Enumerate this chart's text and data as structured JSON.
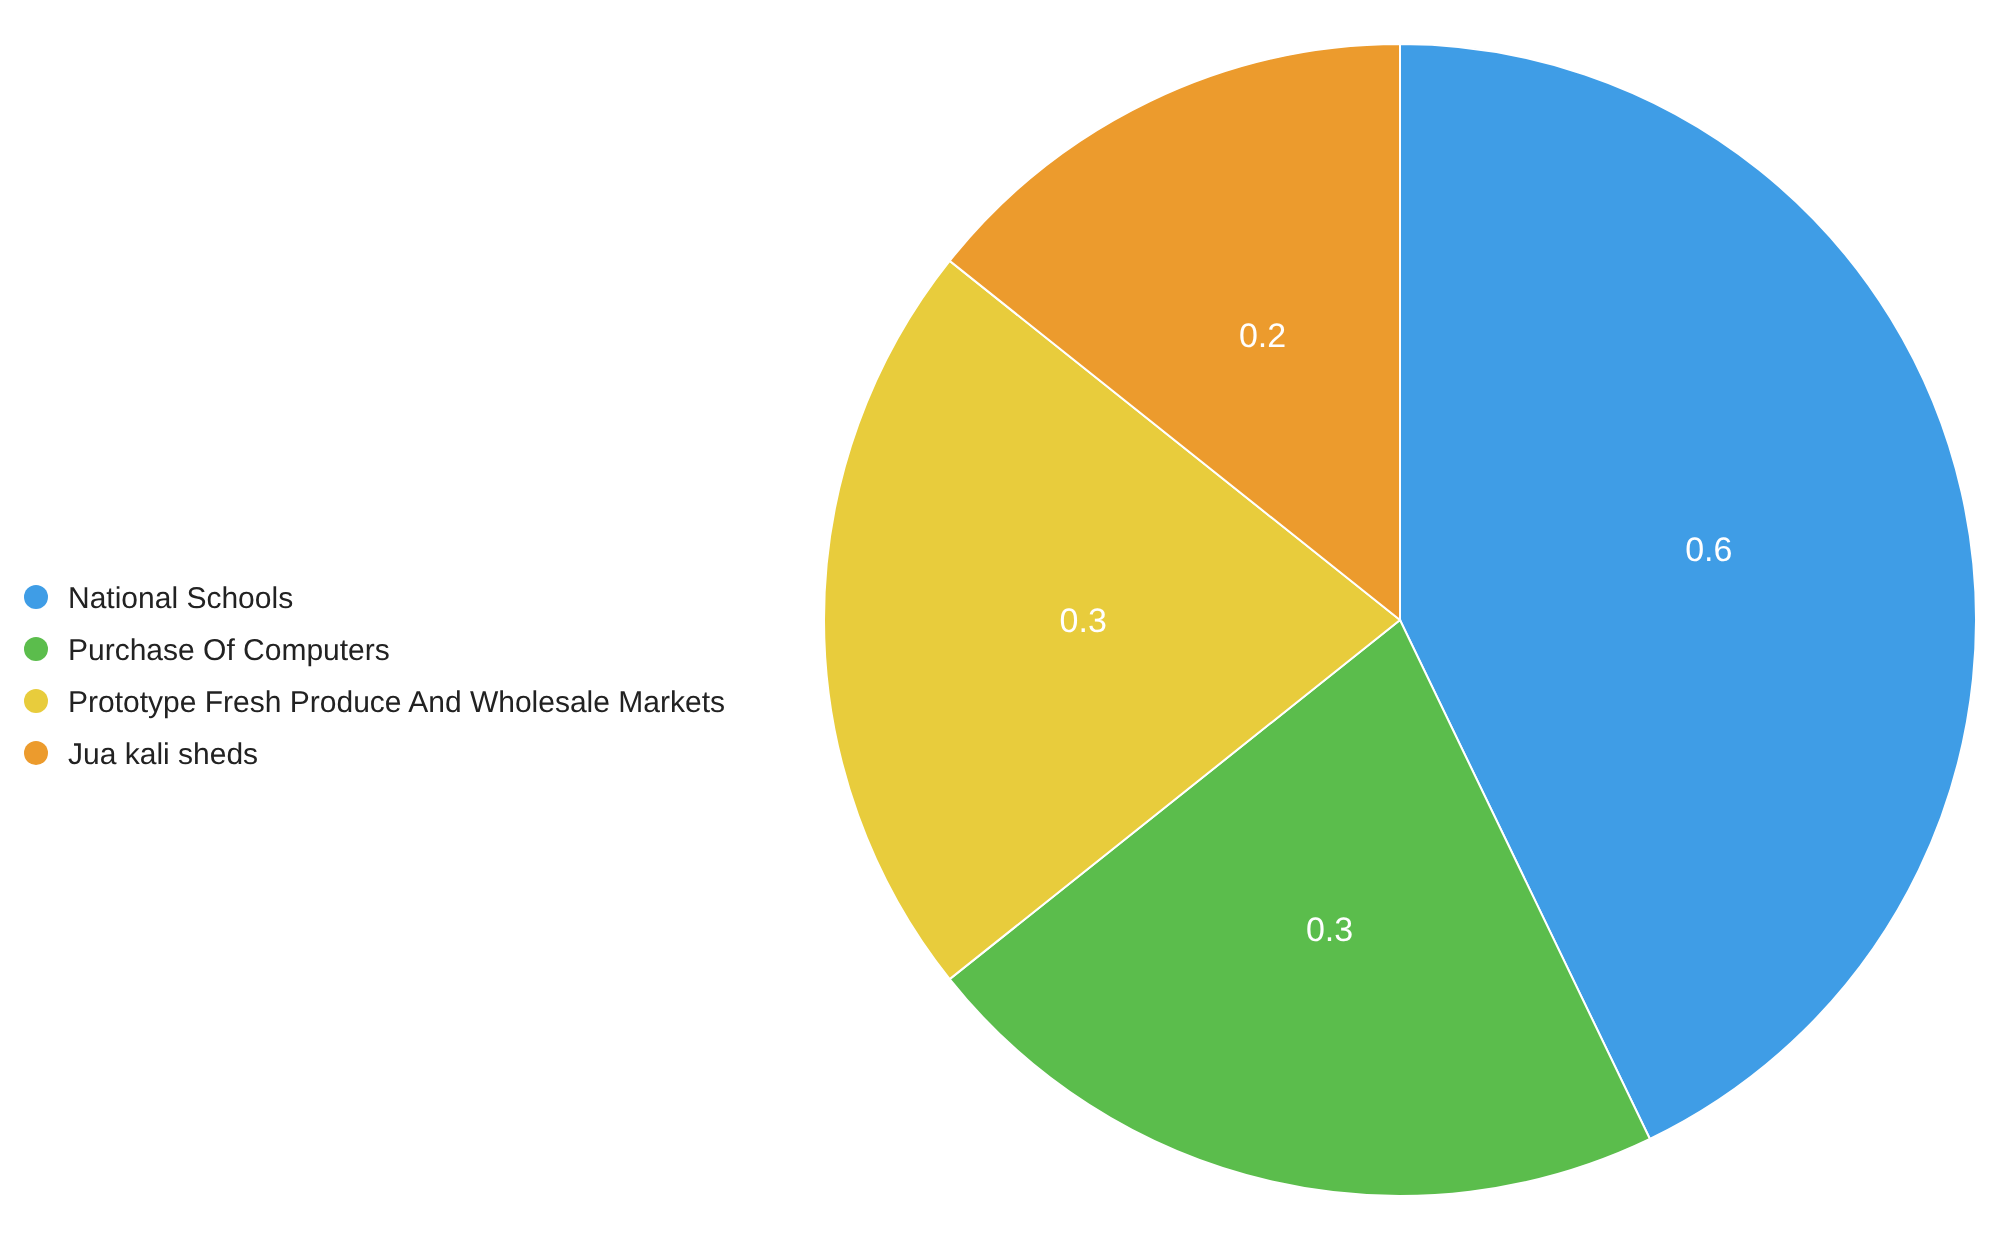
{
  "chart_data": {
    "type": "pie",
    "categories": [
      "National Schools",
      "Purchase Of Computers",
      "Prototype Fresh Produce And Wholesale Markets",
      "Jua kali sheds"
    ],
    "values": [
      0.6,
      0.3,
      0.3,
      0.2
    ],
    "colors": [
      "#3f9de6",
      "#5bbd4c",
      "#e8cc3c",
      "#ec9b2d"
    ],
    "data_labels": true,
    "legend": "left"
  }
}
